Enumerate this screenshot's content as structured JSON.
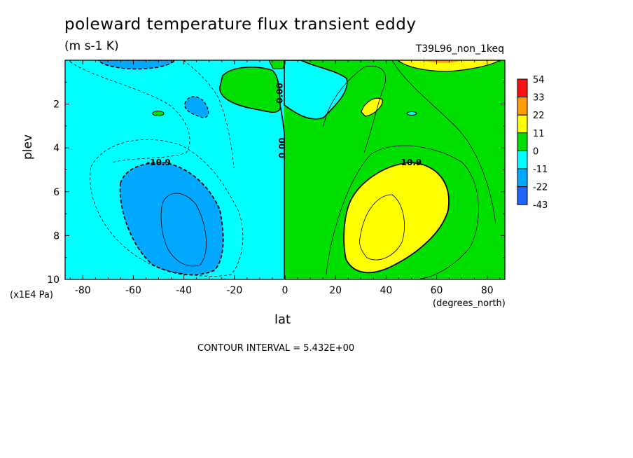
{
  "title": "poleward temperature flux transient eddy",
  "units": "(m s-1 K)",
  "run_id": "T39L96_non_1keq",
  "contour_interval": "CONTOUR INTERVAL = 5.432E+00",
  "chart_data": {
    "type": "contour",
    "xlabel": "lat",
    "xlabel_units": "(degrees_north)",
    "ylabel": "plev",
    "ylabel_units": "(x1E4 Pa)",
    "xlim": [
      -87,
      87
    ],
    "ylim": [
      0,
      10
    ],
    "x_ticks": [
      -80,
      -60,
      -40,
      -20,
      0,
      20,
      40,
      60,
      80
    ],
    "x_tick_labels": [
      "-80",
      "-60",
      "-40",
      "-20",
      "0",
      "20",
      "40",
      "60",
      "80"
    ],
    "y_ticks": [
      2,
      4,
      6,
      8,
      10
    ],
    "y_tick_labels": [
      "2",
      "4",
      "6",
      "8",
      "10"
    ],
    "contour_labels": [
      {
        "text": "-10.9",
        "lat": -50,
        "plev": 4.8
      },
      {
        "text": "10.9",
        "lat": 50,
        "plev": 4.8
      },
      {
        "text": "0.00",
        "lat": -1,
        "plev": 1.5
      },
      {
        "text": "0.00",
        "lat": 0,
        "plev": 4.0
      }
    ],
    "colorbar": {
      "levels": [
        "54",
        "33",
        "22",
        "11",
        "0",
        "-11",
        "-22",
        "-43"
      ],
      "colors": [
        "#ff1010",
        "#ff9c00",
        "#ffff00",
        "#00e000",
        "#00ffff",
        "#00a8ff",
        "#1e64ff"
      ]
    },
    "fills": {
      "negative_1": "#00ffff",
      "negative_2": "#00a8ff",
      "positive_1": "#00e000",
      "positive_2": "#ffff00",
      "positive_4": "#ff9c00",
      "negative_4": "#1e64ff"
    }
  }
}
